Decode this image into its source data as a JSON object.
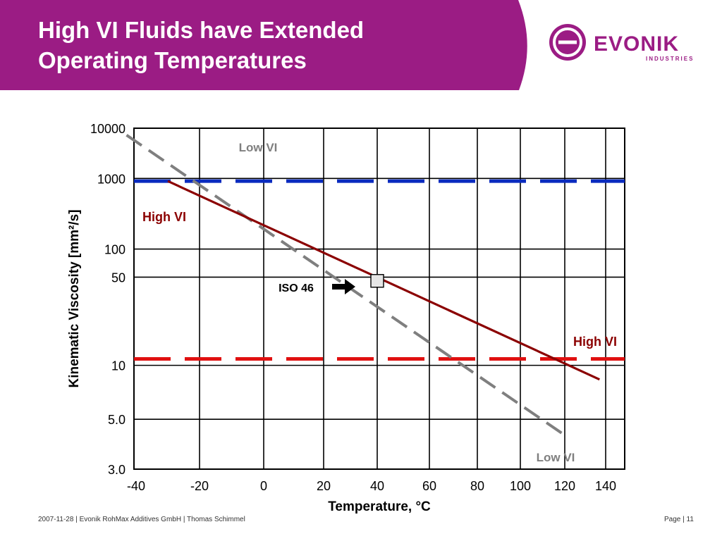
{
  "slide": {
    "title_line1": "High VI Fluids have Extended",
    "title_line2": "Operating Temperatures",
    "footer_left": "2007-11-28 | Evonik RohMax Additives GmbH | Thomas Schimmel",
    "footer_right": "Page | 11",
    "brand_color": "#9b1c84"
  },
  "logo": {
    "wordmark": "EVONIK",
    "subline": "INDUSTRIES"
  },
  "chart_data": {
    "type": "line",
    "xlabel": "Temperature, °C",
    "ylabel": "Kinematic Viscosity [mm²/s]",
    "x_ticks": [
      "-40",
      "-20",
      "0",
      "20",
      "40",
      "60",
      "80",
      "100",
      "120",
      "140"
    ],
    "y_ticks": [
      {
        "value": 3,
        "label": "3.0"
      },
      {
        "value": 5,
        "label": "5.0"
      },
      {
        "value": 10,
        "label": "10"
      },
      {
        "value": 50,
        "label": "50"
      },
      {
        "value": 100,
        "label": "100"
      },
      {
        "value": 1000,
        "label": "1000"
      },
      {
        "value": 10000,
        "label": "10000"
      }
    ],
    "y_scale": "log (Walther-type)",
    "grid": true,
    "series": [
      {
        "name": "Low VI",
        "color": "#7f7f7f",
        "style": "dashed",
        "x": [
          -43,
          120
        ],
        "y": [
          7000,
          4.2
        ]
      },
      {
        "name": "High VI",
        "color": "#8b0000",
        "style": "solid",
        "x": [
          -30,
          137
        ],
        "y": [
          900,
          8.2
        ]
      }
    ],
    "reference_lines": [
      {
        "value": 900,
        "color": "#0a2bbf",
        "style": "dashed"
      },
      {
        "value": 11,
        "color": "#e01010",
        "style": "dashed"
      }
    ],
    "annotations": [
      {
        "text": "Low VI",
        "color": "#7f7f7f"
      },
      {
        "text": "Low VI",
        "color": "#7f7f7f"
      },
      {
        "text": "High VI",
        "color": "#8b0000"
      },
      {
        "text": "High VI",
        "color": "#8b0000"
      },
      {
        "text": "ISO 46",
        "color": "#000000"
      }
    ],
    "marker": {
      "x": 40,
      "y": 46
    }
  }
}
